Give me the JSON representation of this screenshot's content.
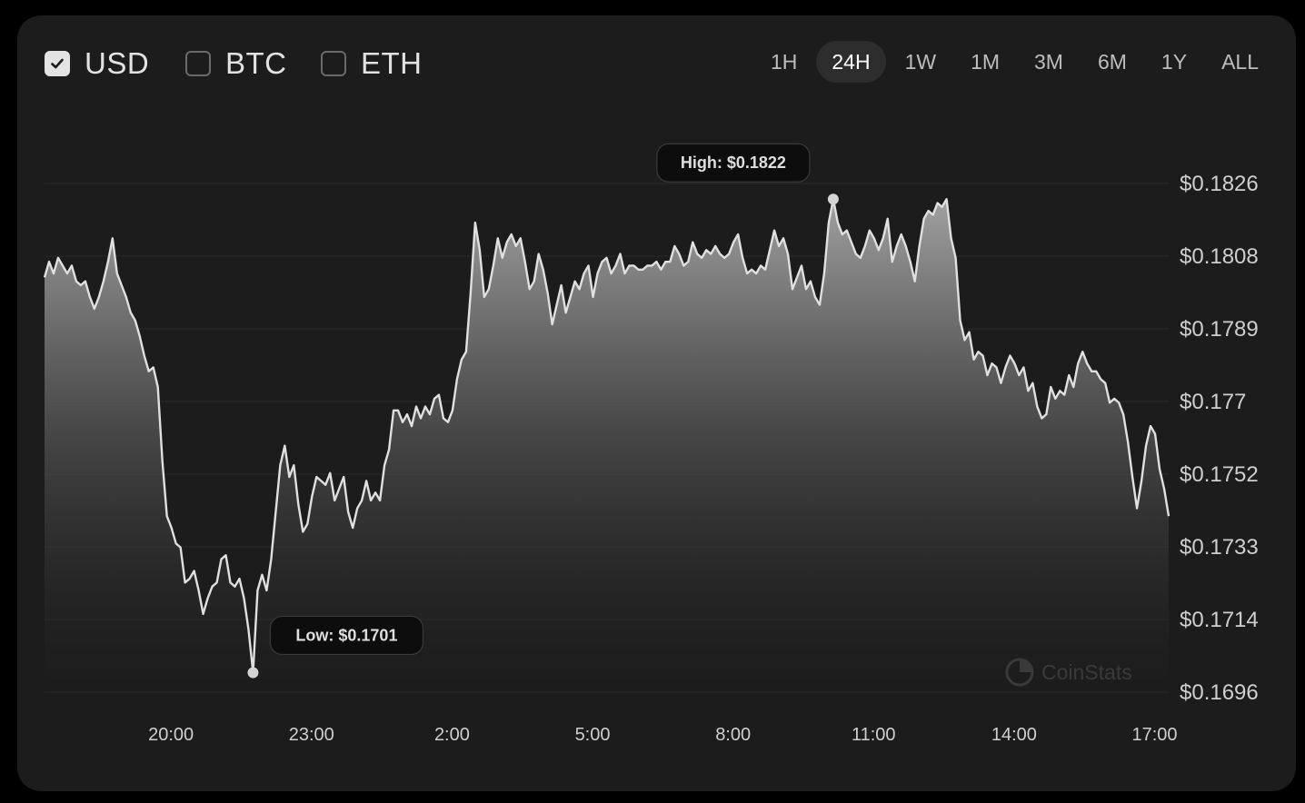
{
  "currencies": [
    {
      "label": "USD",
      "checked": true
    },
    {
      "label": "BTC",
      "checked": false
    },
    {
      "label": "ETH",
      "checked": false
    }
  ],
  "ranges": [
    "1H",
    "24H",
    "1W",
    "1M",
    "3M",
    "6M",
    "1Y",
    "ALL"
  ],
  "active_range": "24H",
  "watermark": "CoinStats",
  "colors": {
    "background": "#000000",
    "card": "#1c1c1c",
    "line": "#e0e0e0",
    "text": "#cfcfcf"
  },
  "chart_data": {
    "type": "area",
    "series": [
      {
        "x_start_hour": 17.3,
        "x_end_hour": 41.3,
        "values": [
          0.1802,
          0.1806,
          0.1803,
          0.1807,
          0.1805,
          0.1803,
          0.1805,
          0.1801,
          0.18,
          0.1801,
          0.1797,
          0.1794,
          0.1797,
          0.1801,
          0.1806,
          0.1812,
          0.1803,
          0.18,
          0.1797,
          0.1793,
          0.1791,
          0.1787,
          0.1782,
          0.1778,
          0.1779,
          0.1774,
          0.1755,
          0.1741,
          0.1738,
          0.1734,
          0.1733,
          0.1724,
          0.1725,
          0.1727,
          0.1722,
          0.1716,
          0.172,
          0.1723,
          0.1724,
          0.173,
          0.1731,
          0.1724,
          0.1723,
          0.1725,
          0.172,
          0.1712,
          0.1701,
          0.1722,
          0.1726,
          0.1722,
          0.173,
          0.1742,
          0.1754,
          0.1759,
          0.1751,
          0.1754,
          0.1744,
          0.1737,
          0.1739,
          0.1746,
          0.1751,
          0.175,
          0.1749,
          0.1752,
          0.1745,
          0.1748,
          0.1751,
          0.1742,
          0.1738,
          0.1743,
          0.1745,
          0.175,
          0.1745,
          0.1747,
          0.1745,
          0.1754,
          0.1758,
          0.1768,
          0.1768,
          0.1765,
          0.1767,
          0.1764,
          0.1769,
          0.1766,
          0.1769,
          0.1767,
          0.1771,
          0.1772,
          0.1766,
          0.1765,
          0.1768,
          0.1776,
          0.1781,
          0.1783,
          0.1798,
          0.1816,
          0.1809,
          0.1797,
          0.1799,
          0.1805,
          0.1812,
          0.1807,
          0.1811,
          0.1813,
          0.181,
          0.1812,
          0.1806,
          0.1799,
          0.1801,
          0.1808,
          0.1804,
          0.1798,
          0.179,
          0.1795,
          0.18,
          0.1793,
          0.1797,
          0.1801,
          0.1799,
          0.1803,
          0.1805,
          0.1797,
          0.1803,
          0.1806,
          0.1807,
          0.1803,
          0.1805,
          0.1808,
          0.1803,
          0.1805,
          0.1805,
          0.1804,
          0.1804,
          0.1805,
          0.1805,
          0.1806,
          0.1804,
          0.1806,
          0.1806,
          0.181,
          0.1808,
          0.1805,
          0.1806,
          0.1811,
          0.1808,
          0.1807,
          0.1809,
          0.1808,
          0.181,
          0.1808,
          0.1807,
          0.1808,
          0.1811,
          0.1813,
          0.1807,
          0.1803,
          0.1804,
          0.1803,
          0.1805,
          0.1804,
          0.1809,
          0.1814,
          0.181,
          0.1812,
          0.1808,
          0.1799,
          0.1802,
          0.1805,
          0.1799,
          0.1801,
          0.1797,
          0.1795,
          0.1803,
          0.1816,
          0.1822,
          0.1816,
          0.1813,
          0.1814,
          0.1811,
          0.1808,
          0.1807,
          0.181,
          0.1814,
          0.1812,
          0.1809,
          0.1812,
          0.1817,
          0.1806,
          0.181,
          0.1813,
          0.181,
          0.1806,
          0.1801,
          0.181,
          0.1817,
          0.1819,
          0.1818,
          0.1821,
          0.182,
          0.1822,
          0.1812,
          0.1807,
          0.1791,
          0.1786,
          0.1788,
          0.1781,
          0.1783,
          0.1782,
          0.1777,
          0.178,
          0.1779,
          0.1775,
          0.1779,
          0.1782,
          0.178,
          0.1777,
          0.1779,
          0.1773,
          0.1775,
          0.1769,
          0.1766,
          0.1767,
          0.1774,
          0.1771,
          0.1773,
          0.1772,
          0.1777,
          0.1774,
          0.178,
          0.1783,
          0.178,
          0.1778,
          0.1778,
          0.1776,
          0.1775,
          0.177,
          0.1771,
          0.177,
          0.1767,
          0.176,
          0.1751,
          0.1743,
          0.175,
          0.1759,
          0.1764,
          0.1762,
          0.1753,
          0.1748,
          0.1741
        ]
      }
    ],
    "x_tick_labels": [
      "20:00",
      "23:00",
      "2:00",
      "5:00",
      "8:00",
      "11:00",
      "14:00",
      "17:00"
    ],
    "x_tick_hours": [
      20,
      23,
      26,
      29,
      32,
      35,
      38,
      41
    ],
    "y_tick_labels": [
      "$0.1826",
      "$0.1808",
      "$0.1789",
      "$0.177",
      "$0.1752",
      "$0.1733",
      "$0.1714",
      "$0.1696"
    ],
    "ylim": [
      0.1696,
      0.1826
    ],
    "grid": true,
    "annotations": {
      "high": {
        "label": "High: $0.1822",
        "value": 0.1822
      },
      "low": {
        "label": "Low: $0.1701",
        "value": 0.1701
      }
    }
  }
}
